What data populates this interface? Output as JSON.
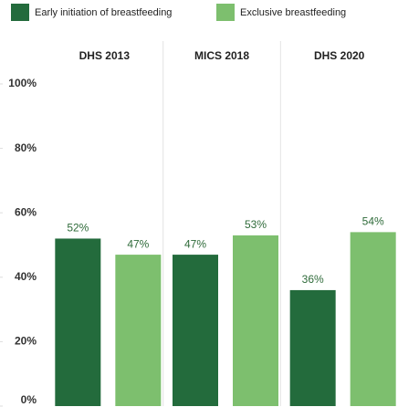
{
  "chart_data": {
    "type": "bar",
    "categories": [
      "DHS 2013",
      "MICS 2018",
      "DHS 2020"
    ],
    "series": [
      {
        "name": "Early initiation of breastfeeding",
        "color": "#236b3c",
        "values": [
          52,
          47,
          36
        ],
        "value_labels": [
          "52%",
          "47%",
          "36%"
        ]
      },
      {
        "name": "Exclusive breastfeeding",
        "color": "#7dbf6e",
        "values": [
          47,
          53,
          54
        ],
        "value_labels": [
          "47%",
          "53%",
          "54%"
        ]
      }
    ],
    "ylim": [
      0,
      100
    ],
    "yticks": [
      {
        "value": 0,
        "label": "0%"
      },
      {
        "value": 20,
        "label": "20%"
      },
      {
        "value": 40,
        "label": "40%"
      },
      {
        "value": 60,
        "label": "60%"
      },
      {
        "value": 80,
        "label": "80%"
      },
      {
        "value": 100,
        "label": "100%"
      }
    ],
    "legend": "top-left"
  }
}
